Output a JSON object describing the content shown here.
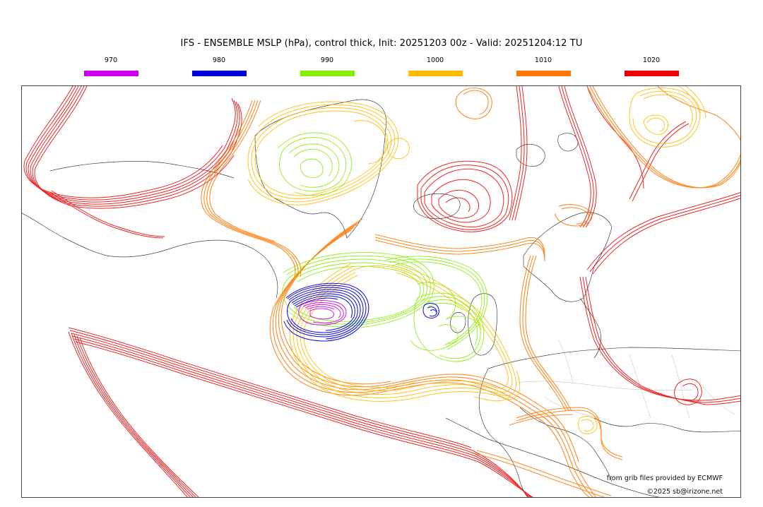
{
  "title": "IFS - ENSEMBLE MSLP (hPa), control thick, Init: 20251203 00z - Valid: 20251204:12 TU",
  "legend": [
    {
      "label": "970",
      "color": "#cc00ee"
    },
    {
      "label": "980",
      "color": "#0000dd"
    },
    {
      "label": "990",
      "color": "#88ee00"
    },
    {
      "label": "1000",
      "color": "#ffbb00"
    },
    {
      "label": "1010",
      "color": "#ff7700"
    },
    {
      "label": "1020",
      "color": "#ee0000"
    }
  ],
  "credits": {
    "source": "from grib files provided by ECMWF",
    "copyright": "©2025 sb@irizone.net"
  }
}
